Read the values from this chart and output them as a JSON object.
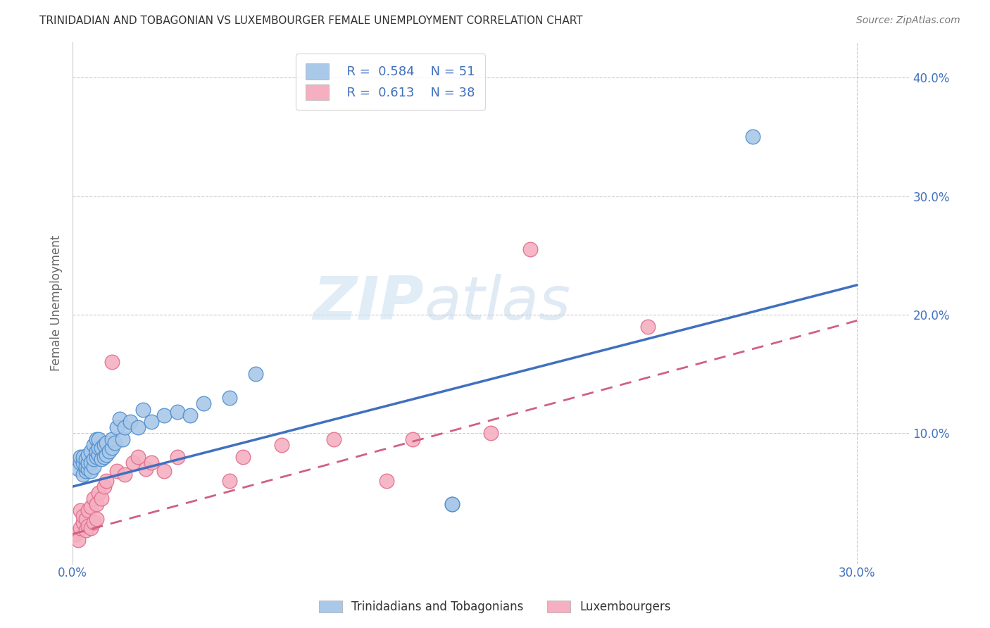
{
  "title": "TRINIDADIAN AND TOBAGONIAN VS LUXEMBOURGER FEMALE UNEMPLOYMENT CORRELATION CHART",
  "source": "Source: ZipAtlas.com",
  "ylabel": "Female Unemployment",
  "xlim": [
    0.0,
    0.32
  ],
  "ylim": [
    -0.01,
    0.43
  ],
  "xtick_positions": [
    0.0,
    0.3
  ],
  "xtick_labels": [
    "0.0%",
    "30.0%"
  ],
  "ytick_positions": [
    0.1,
    0.2,
    0.3,
    0.4
  ],
  "ytick_labels": [
    "10.0%",
    "20.0%",
    "30.0%",
    "40.0%"
  ],
  "blue_R": "0.584",
  "blue_N": "51",
  "pink_R": "0.613",
  "pink_N": "38",
  "blue_color": "#aac8e8",
  "pink_color": "#f5afc0",
  "blue_edge_color": "#5090d0",
  "pink_edge_color": "#e07090",
  "blue_line_color": "#4070c0",
  "pink_line_color": "#d06080",
  "legend_label_blue": "Trinidadians and Tobagonians",
  "legend_label_pink": "Luxembourgers",
  "watermark_zip": "ZIP",
  "watermark_atlas": "atlas",
  "blue_line_x": [
    0.0,
    0.3
  ],
  "blue_line_y": [
    0.055,
    0.225
  ],
  "pink_line_x": [
    0.0,
    0.3
  ],
  "pink_line_y": [
    0.015,
    0.195
  ],
  "grid_color": "#cccccc",
  "bg_color": "#ffffff",
  "blue_scatter_x": [
    0.002,
    0.003,
    0.003,
    0.004,
    0.004,
    0.004,
    0.005,
    0.005,
    0.005,
    0.006,
    0.006,
    0.006,
    0.007,
    0.007,
    0.007,
    0.008,
    0.008,
    0.008,
    0.009,
    0.009,
    0.009,
    0.01,
    0.01,
    0.01,
    0.011,
    0.011,
    0.012,
    0.012,
    0.013,
    0.013,
    0.014,
    0.015,
    0.015,
    0.016,
    0.017,
    0.018,
    0.019,
    0.02,
    0.022,
    0.025,
    0.027,
    0.03,
    0.035,
    0.04,
    0.045,
    0.05,
    0.06,
    0.07,
    0.145,
    0.145,
    0.26
  ],
  "blue_scatter_y": [
    0.07,
    0.075,
    0.08,
    0.065,
    0.075,
    0.08,
    0.068,
    0.072,
    0.078,
    0.07,
    0.075,
    0.082,
    0.068,
    0.075,
    0.085,
    0.072,
    0.078,
    0.09,
    0.08,
    0.085,
    0.095,
    0.082,
    0.088,
    0.095,
    0.078,
    0.088,
    0.08,
    0.09,
    0.082,
    0.092,
    0.085,
    0.088,
    0.095,
    0.092,
    0.105,
    0.112,
    0.095,
    0.105,
    0.11,
    0.105,
    0.12,
    0.11,
    0.115,
    0.118,
    0.115,
    0.125,
    0.13,
    0.15,
    0.04,
    0.04,
    0.35
  ],
  "pink_scatter_x": [
    0.001,
    0.002,
    0.003,
    0.003,
    0.004,
    0.004,
    0.005,
    0.005,
    0.006,
    0.006,
    0.007,
    0.007,
    0.008,
    0.008,
    0.009,
    0.009,
    0.01,
    0.011,
    0.012,
    0.013,
    0.015,
    0.017,
    0.02,
    0.023,
    0.025,
    0.028,
    0.03,
    0.035,
    0.04,
    0.06,
    0.065,
    0.08,
    0.1,
    0.12,
    0.13,
    0.16,
    0.175,
    0.22
  ],
  "pink_scatter_y": [
    0.015,
    0.01,
    0.02,
    0.035,
    0.025,
    0.03,
    0.018,
    0.028,
    0.022,
    0.035,
    0.02,
    0.038,
    0.025,
    0.045,
    0.028,
    0.04,
    0.05,
    0.045,
    0.055,
    0.06,
    0.16,
    0.068,
    0.065,
    0.075,
    0.08,
    0.07,
    0.075,
    0.068,
    0.08,
    0.06,
    0.08,
    0.09,
    0.095,
    0.06,
    0.095,
    0.1,
    0.255,
    0.19
  ]
}
